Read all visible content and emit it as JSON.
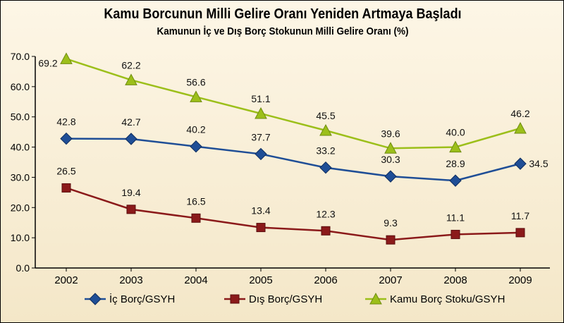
{
  "chart_data": {
    "type": "line",
    "title": "Kamu Borcunun Milli Gelire Oranı Yeniden Artmaya Başladı",
    "subtitle": "Kamunun İç ve Dış Borç Stokunun Milli Gelire Oranı (%)",
    "categories": [
      "2002",
      "2003",
      "2004",
      "2005",
      "2006",
      "2007",
      "2008",
      "2009"
    ],
    "ylim": [
      0,
      70
    ],
    "yticks": [
      "0.0",
      "10.0",
      "20.0",
      "30.0",
      "40.0",
      "50.0",
      "60.0",
      "70.0"
    ],
    "grid": false,
    "legend_position": "bottom",
    "series": [
      {
        "name": "İç Borç/GSYH",
        "color": "#1f4e96",
        "marker": "diamond",
        "values": [
          42.8,
          42.7,
          40.2,
          37.7,
          33.2,
          30.3,
          28.9,
          34.5
        ],
        "labels": [
          "42.8",
          "42.7",
          "40.2",
          "37.7",
          "33.2",
          "30.3",
          "28.9",
          "34.5"
        ]
      },
      {
        "name": "Dış Borç/GSYH",
        "color": "#8b1a1a",
        "marker": "square",
        "values": [
          26.5,
          19.4,
          16.5,
          13.4,
          12.3,
          9.3,
          11.1,
          11.7
        ],
        "labels": [
          "26.5",
          "19.4",
          "16.5",
          "13.4",
          "12.3",
          "9.3",
          "11.1",
          "11.7"
        ]
      },
      {
        "name": "Kamu Borç Stoku/GSYH",
        "color": "#9cbf1a",
        "marker": "triangle",
        "values": [
          69.2,
          62.2,
          56.6,
          51.1,
          45.5,
          39.6,
          40.0,
          46.2
        ],
        "labels": [
          "69.2",
          "62.2",
          "56.6",
          "51.1",
          "45.5",
          "39.6",
          "40.0",
          "46.2"
        ]
      }
    ]
  }
}
